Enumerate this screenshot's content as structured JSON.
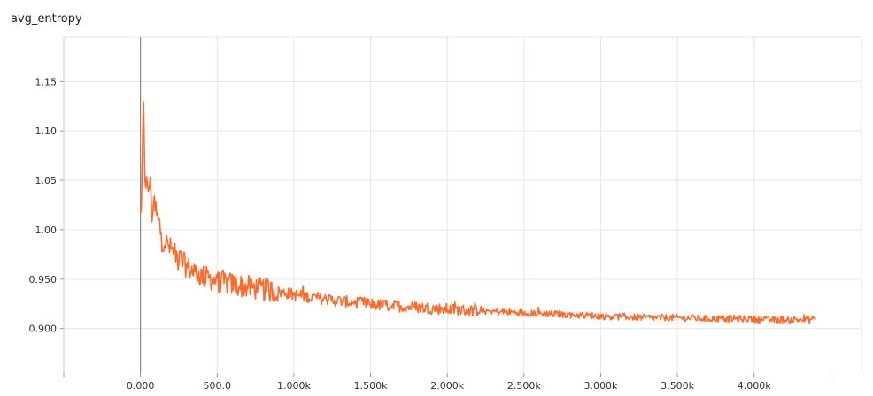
{
  "chart_data": {
    "type": "line",
    "title": "avg_entropy",
    "xlabel": "",
    "ylabel": "",
    "xlim": [
      -500,
      4700
    ],
    "ylim": [
      0.855,
      1.195
    ],
    "grid": true,
    "x_ticks": [
      {
        "value": 0,
        "label": "0.000"
      },
      {
        "value": 500,
        "label": "500.0"
      },
      {
        "value": 1000,
        "label": "1.000k"
      },
      {
        "value": 1500,
        "label": "1.500k"
      },
      {
        "value": 2000,
        "label": "2.000k"
      },
      {
        "value": 2500,
        "label": "2.500k"
      },
      {
        "value": 3000,
        "label": "3.000k"
      },
      {
        "value": 3500,
        "label": "3.500k"
      },
      {
        "value": 4000,
        "label": "4.000k"
      }
    ],
    "y_ticks": [
      {
        "value": 0.9,
        "label": "0.900"
      },
      {
        "value": 0.95,
        "label": "0.950"
      },
      {
        "value": 1.0,
        "label": "1.00"
      },
      {
        "value": 1.05,
        "label": "1.05"
      },
      {
        "value": 1.1,
        "label": "1.10"
      },
      {
        "value": 1.15,
        "label": "1.15"
      }
    ],
    "series": [
      {
        "color": "#ff6a2b",
        "x_start": 0,
        "x_end": 4400,
        "points": [
          [
            0,
            1.018
          ],
          [
            10,
            1.05
          ],
          [
            20,
            1.118
          ],
          [
            30,
            1.06
          ],
          [
            45,
            1.035
          ],
          [
            60,
            1.05
          ],
          [
            75,
            1.02
          ],
          [
            90,
            1.025
          ],
          [
            110,
            1.01
          ],
          [
            130,
            1.0
          ],
          [
            150,
            0.99
          ],
          [
            175,
            0.985
          ],
          [
            200,
            0.98
          ],
          [
            230,
            0.975
          ],
          [
            260,
            0.97
          ],
          [
            300,
            0.963
          ],
          [
            340,
            0.958
          ],
          [
            380,
            0.955
          ],
          [
            420,
            0.952
          ],
          [
            460,
            0.95
          ],
          [
            500,
            0.948
          ],
          [
            560,
            0.946
          ],
          [
            620,
            0.944
          ],
          [
            700,
            0.942
          ],
          [
            780,
            0.94
          ],
          [
            860,
            0.938
          ],
          [
            950,
            0.936
          ],
          [
            1050,
            0.933
          ],
          [
            1150,
            0.931
          ],
          [
            1250,
            0.929
          ],
          [
            1350,
            0.927
          ],
          [
            1450,
            0.926
          ],
          [
            1550,
            0.924
          ],
          [
            1650,
            0.923
          ],
          [
            1750,
            0.922
          ],
          [
            1850,
            0.921
          ],
          [
            1950,
            0.92
          ],
          [
            2050,
            0.919
          ],
          [
            2200,
            0.918
          ],
          [
            2350,
            0.917
          ],
          [
            2500,
            0.916
          ],
          [
            2650,
            0.915
          ],
          [
            2800,
            0.914
          ],
          [
            2950,
            0.913
          ],
          [
            3100,
            0.912
          ],
          [
            3300,
            0.911
          ],
          [
            3500,
            0.911
          ],
          [
            3700,
            0.91
          ],
          [
            3900,
            0.91
          ],
          [
            4100,
            0.909
          ],
          [
            4300,
            0.909
          ],
          [
            4400,
            0.909
          ]
        ]
      }
    ]
  }
}
